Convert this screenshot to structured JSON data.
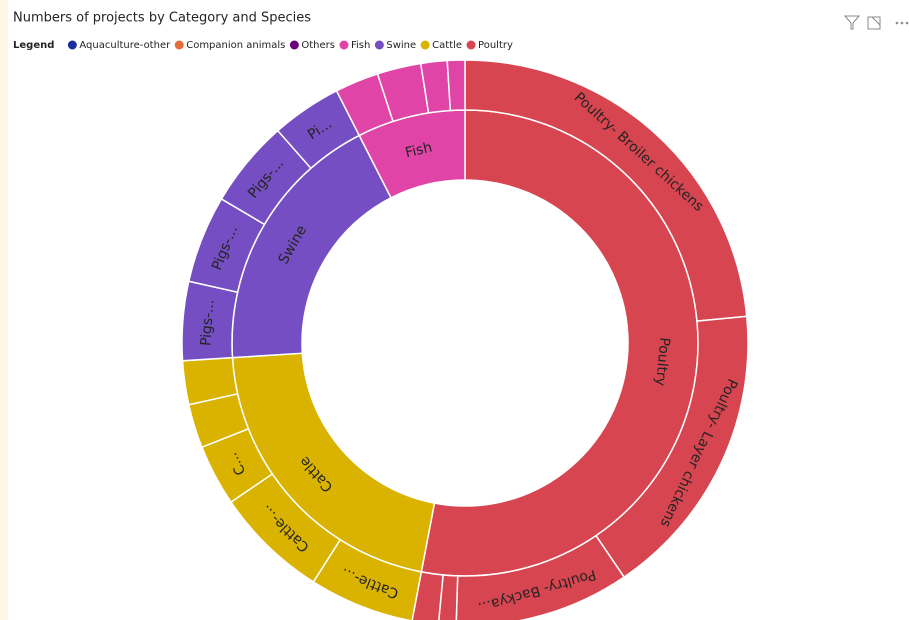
{
  "chart_data": {
    "type": "sunburst",
    "title": "Numbers of projects by Category and Species",
    "legend_title": "Legend",
    "legend": [
      {
        "name": "Aquaculture-other",
        "color": "#1a2f9e"
      },
      {
        "name": "Companion animals",
        "color": "#e66c37"
      },
      {
        "name": "Others",
        "color": "#6b007b"
      },
      {
        "name": "Fish",
        "color": "#e044a7"
      },
      {
        "name": "Swine",
        "color": "#744ec2"
      },
      {
        "name": "Cattle",
        "color": "#d9b300"
      },
      {
        "name": "Poultry",
        "color": "#d64550"
      }
    ],
    "categories": [
      {
        "name": "Poultry",
        "color": "#d64550",
        "value": 106,
        "children": [
          {
            "label": "Poultry- Broiler chickens",
            "value": 47
          },
          {
            "label": "Poultry- Layer chickens",
            "value": 34
          },
          {
            "label": "Poultry- Backya...",
            "value": 20
          },
          {
            "label": null,
            "value": 2
          },
          {
            "label": null,
            "value": 3
          }
        ]
      },
      {
        "name": "Cattle",
        "color": "#d9b300",
        "value": 42,
        "children": [
          {
            "label": "Cattle-...",
            "value": 12
          },
          {
            "label": "Cattle-...",
            "value": 13
          },
          {
            "label": "C...",
            "value": 7
          },
          {
            "label": null,
            "value": 5
          },
          {
            "label": null,
            "value": 5
          }
        ]
      },
      {
        "name": "Swine",
        "color": "#744ec2",
        "value": 37,
        "children": [
          {
            "label": "Pigs-...",
            "value": 9
          },
          {
            "label": "Pigs-...",
            "value": 10
          },
          {
            "label": "Pigs-...",
            "value": 10
          },
          {
            "label": "Pi...",
            "value": 8
          }
        ]
      },
      {
        "name": "Fish",
        "color": "#e044a7",
        "value": 15,
        "children": [
          {
            "label": null,
            "value": 5
          },
          {
            "label": null,
            "value": 5
          },
          {
            "label": null,
            "value": 3
          },
          {
            "label": null,
            "value": 2
          }
        ]
      }
    ]
  }
}
